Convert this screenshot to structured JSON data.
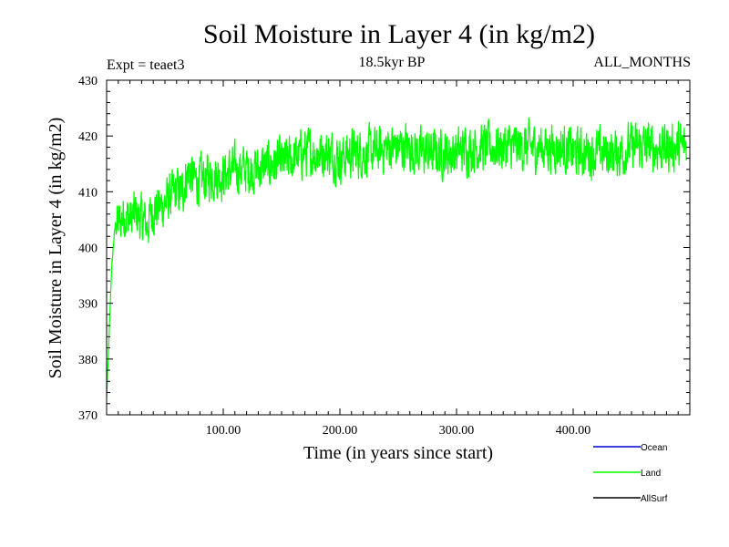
{
  "chart_data": {
    "type": "line",
    "title": "Soil Moisture in Layer 4 (in kg/m2)",
    "subtitle": "18.5kyr BP",
    "experiment_label": "Expt = teaet3",
    "months_label": "ALL_MONTHS",
    "xlabel": "Time (in years since start)",
    "ylabel": "Soil Moisture in Layer 4 (in kg/m2)",
    "xlim": [
      0,
      500
    ],
    "ylim": [
      370,
      430
    ],
    "x_ticks": [
      100,
      200,
      300,
      400
    ],
    "x_tick_labels": [
      "100.00",
      "200.00",
      "300.00",
      "400.00"
    ],
    "y_ticks": [
      370,
      380,
      390,
      400,
      410,
      420,
      430
    ],
    "y_tick_labels": [
      "370",
      "380",
      "390",
      "400",
      "410",
      "420",
      "430"
    ],
    "series": [
      {
        "name": "Ocean",
        "color": "#0000cc",
        "points": []
      },
      {
        "name": "Land",
        "color": "#00ff00",
        "points": [
          [
            0,
            373
          ],
          [
            2,
            383
          ],
          [
            4,
            395
          ],
          [
            6,
            401
          ],
          [
            8,
            405
          ],
          [
            10,
            404
          ],
          [
            15,
            406
          ],
          [
            20,
            405
          ],
          [
            25,
            406
          ],
          [
            30,
            405
          ],
          [
            35,
            404
          ],
          [
            40,
            407
          ],
          [
            45,
            407
          ],
          [
            50,
            408
          ],
          [
            55,
            409
          ],
          [
            60,
            410
          ],
          [
            65,
            410
          ],
          [
            70,
            414
          ],
          [
            75,
            412
          ],
          [
            80,
            412
          ],
          [
            90,
            413
          ],
          [
            100,
            413
          ],
          [
            110,
            414
          ],
          [
            120,
            414
          ],
          [
            130,
            414
          ],
          [
            140,
            415
          ],
          [
            150,
            415
          ],
          [
            160,
            416
          ],
          [
            170,
            417
          ],
          [
            180,
            417
          ],
          [
            190,
            417
          ],
          [
            200,
            416
          ],
          [
            210,
            417
          ],
          [
            220,
            417
          ],
          [
            230,
            417
          ],
          [
            240,
            418
          ],
          [
            250,
            418
          ],
          [
            260,
            418
          ],
          [
            270,
            417
          ],
          [
            280,
            417
          ],
          [
            290,
            417
          ],
          [
            300,
            417
          ],
          [
            310,
            418
          ],
          [
            320,
            418
          ],
          [
            330,
            418
          ],
          [
            340,
            418
          ],
          [
            350,
            418
          ],
          [
            360,
            418
          ],
          [
            370,
            418
          ],
          [
            380,
            418
          ],
          [
            390,
            418
          ],
          [
            400,
            417
          ],
          [
            410,
            417
          ],
          [
            420,
            417
          ],
          [
            430,
            417
          ],
          [
            440,
            417
          ],
          [
            450,
            418
          ],
          [
            460,
            418
          ],
          [
            470,
            418
          ],
          [
            480,
            418
          ],
          [
            490,
            418
          ],
          [
            497,
            418
          ]
        ]
      },
      {
        "name": "AllSurf",
        "color": "#000000",
        "points": []
      }
    ],
    "legend_position": "bottom-right"
  }
}
